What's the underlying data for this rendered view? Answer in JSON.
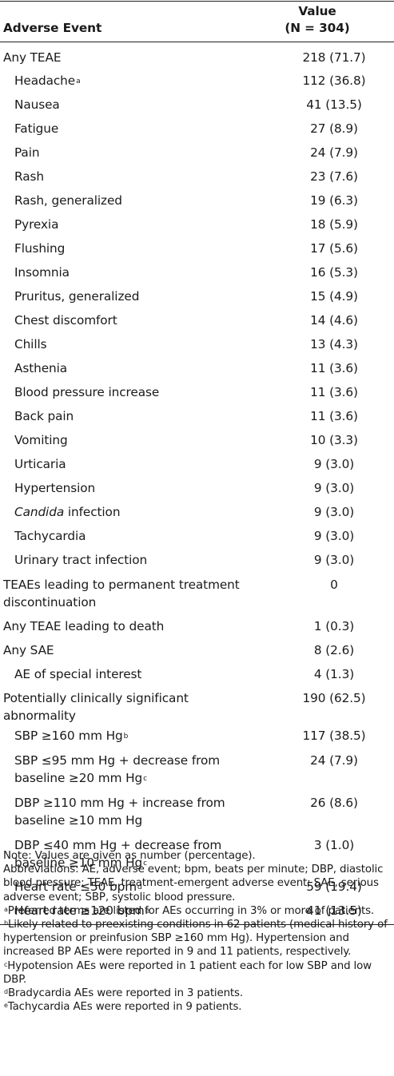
{
  "table": {
    "header": {
      "event": "Adverse Event",
      "value_line1": "Value",
      "value_line2": "(N = 304)"
    },
    "rows": [
      {
        "label": "Any TEAE",
        "value": "218 (71.7)",
        "indent": false
      },
      {
        "label": "Headache",
        "sup": "a",
        "value": "112 (36.8)",
        "indent": true
      },
      {
        "label": "Nausea",
        "value": "41 (13.5)",
        "indent": true
      },
      {
        "label": "Fatigue",
        "value": "27 (8.9)",
        "indent": true
      },
      {
        "label": "Pain",
        "value": "24 (7.9)",
        "indent": true
      },
      {
        "label": "Rash",
        "value": "23 (7.6)",
        "indent": true
      },
      {
        "label": "Rash, generalized",
        "value": "19 (6.3)",
        "indent": true
      },
      {
        "label": "Pyrexia",
        "value": "18 (5.9)",
        "indent": true
      },
      {
        "label": "Flushing",
        "value": "17 (5.6)",
        "indent": true
      },
      {
        "label": "Insomnia",
        "value": "16 (5.3)",
        "indent": true
      },
      {
        "label": "Pruritus, generalized",
        "value": "15 (4.9)",
        "indent": true
      },
      {
        "label": "Chest discomfort",
        "value": "14 (4.6)",
        "indent": true
      },
      {
        "label": "Chills",
        "value": "13 (4.3)",
        "indent": true
      },
      {
        "label": "Asthenia",
        "value": "11 (3.6)",
        "indent": true
      },
      {
        "label": "Blood pressure increase",
        "value": "11 (3.6)",
        "indent": true
      },
      {
        "label": "Back pain",
        "value": "11 (3.6)",
        "indent": true
      },
      {
        "label": "Vomiting",
        "value": "10 (3.3)",
        "indent": true
      },
      {
        "label": "Urticaria",
        "value": "9 (3.0)",
        "indent": true
      },
      {
        "label": "Hypertension",
        "value": "9 (3.0)",
        "indent": true
      },
      {
        "label_italic": "Candida",
        "label": " infection",
        "value": "9 (3.0)",
        "indent": true
      },
      {
        "label": "Tachycardia",
        "value": "9 (3.0)",
        "indent": true
      },
      {
        "label": "Urinary tract infection",
        "value": "9 (3.0)",
        "indent": true
      },
      {
        "label": "TEAEs leading to permanent treatment discontinuation",
        "value": "0",
        "indent": false
      },
      {
        "label": "Any TEAE leading to death",
        "value": "1 (0.3)",
        "indent": false
      },
      {
        "label": "Any SAE",
        "value": "8 (2.6)",
        "indent": false
      },
      {
        "label": "AE of special interest",
        "value": "4 (1.3)",
        "indent": true
      },
      {
        "label": "Potentially clinically significant abnormality",
        "value": "190 (62.5)",
        "indent": false
      },
      {
        "label": "SBP ≥160 mm Hg",
        "sup": "b",
        "value": "117 (38.5)",
        "indent": true
      },
      {
        "label": "SBP ≤95 mm Hg + decrease from baseline ≥20 mm Hg",
        "sup": "c",
        "value": "24 (7.9)",
        "indent": true
      },
      {
        "label": "DBP ≥110 mm Hg + increase from baseline ≥10 mm Hg",
        "value": "26 (8.6)",
        "indent": true
      },
      {
        "label": "DBP ≤40 mm Hg + decrease from baseline ≥10 mm Hg",
        "sup": "c",
        "value": "3 (1.0)",
        "indent": true
      },
      {
        "label": "Heart rate ≤50 bpm",
        "sup": "d",
        "value": "59 (19.4)",
        "indent": true
      },
      {
        "label": "Heart rate ≥120 bpm",
        "sup": "e",
        "value": "41 (13.5)",
        "indent": true
      }
    ]
  },
  "notes": {
    "note": "Note: Values are given as number (percentage).",
    "abbreviations": "Abbreviations: AE, adverse event; bpm, beats per minute; DBP, diastolic blood pressure; TEAE, treatment-emergent adverse event; SAE, serious adverse event; SBP, systolic blood pressure.",
    "footnotes": [
      {
        "mark": "a",
        "text": "Preferred terms are listed for AEs occurring in 3% or more of patients."
      },
      {
        "mark": "b",
        "text": "Likely related to preexisting conditions in 62 patients (medical history of hypertension or preinfusion SBP ≥160 mm Hg). Hypertension and increased BP AEs were reported in 9 and 11 patients, respectively."
      },
      {
        "mark": "c",
        "text": "Hypotension AEs were reported in 1 patient each for low SBP and low DBP."
      },
      {
        "mark": "d",
        "text": "Bradycardia AEs were reported in 3 patients."
      },
      {
        "mark": "e",
        "text": "Tachycardia AEs were reported in 9 patients."
      }
    ]
  }
}
